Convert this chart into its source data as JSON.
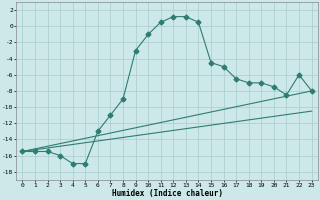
{
  "xlabel": "Humidex (Indice chaleur)",
  "bg_color": "#cce8e8",
  "line_color": "#2e7d6e",
  "grid_color": "#aacccc",
  "xlim": [
    -0.5,
    23.5
  ],
  "ylim": [
    -19,
    3
  ],
  "xticks": [
    0,
    1,
    2,
    3,
    4,
    5,
    6,
    7,
    8,
    9,
    10,
    11,
    12,
    13,
    14,
    15,
    16,
    17,
    18,
    19,
    20,
    21,
    22,
    23
  ],
  "yticks": [
    -18,
    -16,
    -14,
    -12,
    -10,
    -8,
    -6,
    -4,
    -2,
    0,
    2
  ],
  "series1_x": [
    0,
    1,
    2,
    3,
    4,
    5,
    6,
    7,
    8,
    9,
    10,
    11,
    12,
    13,
    14,
    15,
    16,
    17,
    18,
    19,
    20,
    21,
    22,
    23
  ],
  "series1_y": [
    -15.5,
    -15.5,
    -15.5,
    -16,
    -17,
    -17,
    -13,
    -11,
    -9,
    -3,
    -1,
    0.5,
    1.2,
    1.2,
    0.5,
    -4.5,
    -5,
    -6.5,
    -7,
    -7,
    -7.5,
    -8.5,
    -6,
    -8
  ],
  "line1_x": [
    0,
    23
  ],
  "line1_y": [
    -15.5,
    -8.0
  ],
  "line2_x": [
    0,
    23
  ],
  "line2_y": [
    -15.5,
    -10.5
  ]
}
